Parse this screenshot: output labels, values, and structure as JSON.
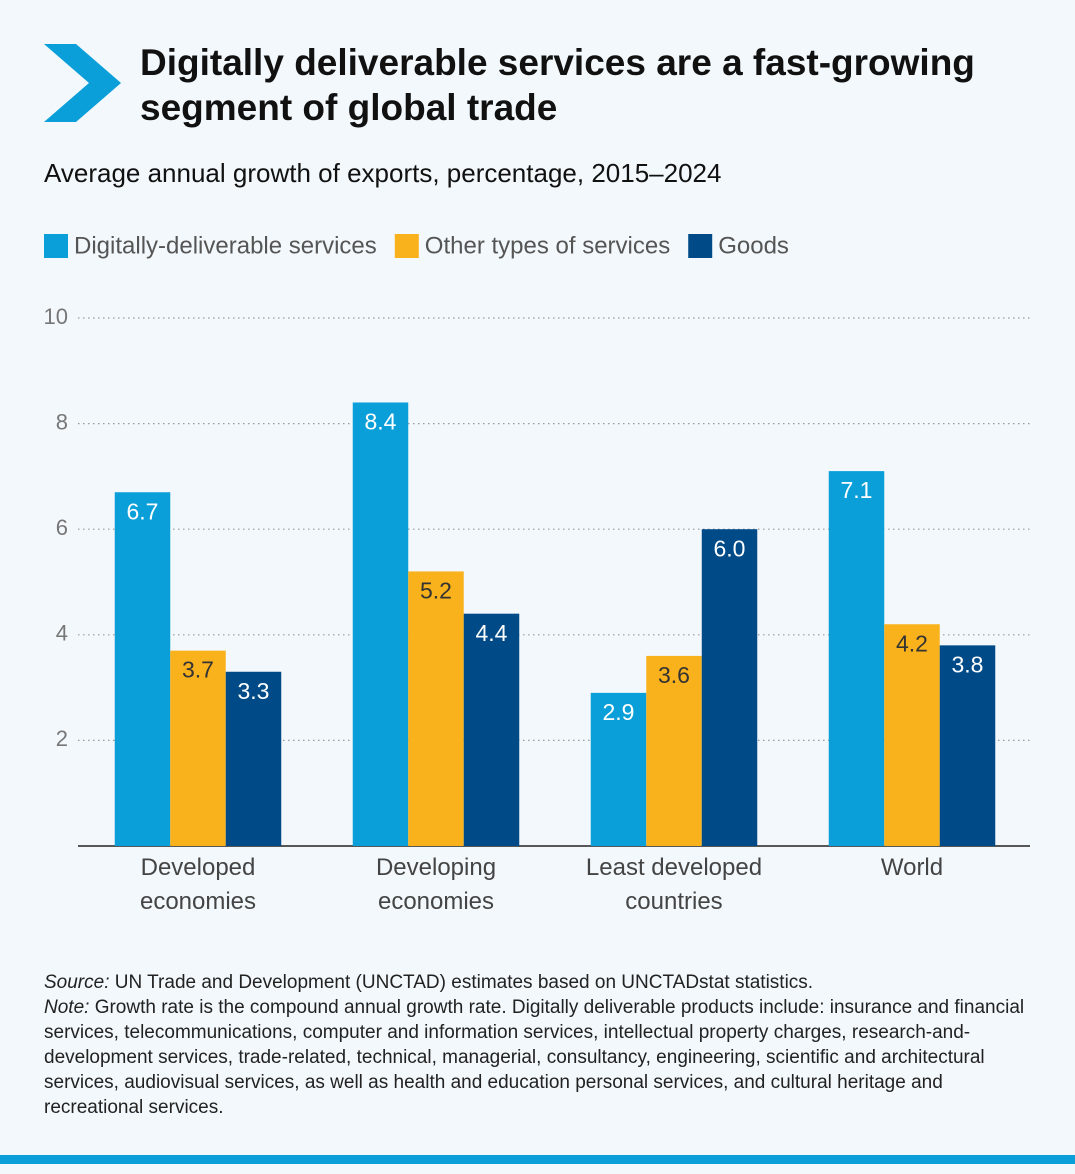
{
  "chart_data": {
    "type": "bar",
    "title": "Digitally deliverable services are a fast-growing segment of global trade",
    "subtitle": "Average annual growth of exports, percentage, 2015–2024",
    "categories": [
      "Developed economies",
      "Developing economies",
      "Least developed countries",
      "World"
    ],
    "series": [
      {
        "name": "Digitally-deliverable services",
        "color": "#0a9fd9",
        "values": [
          6.7,
          8.4,
          2.9,
          7.1
        ],
        "value_labels": [
          "6.7",
          "8.4",
          "2.9",
          "7.1"
        ]
      },
      {
        "name": "Other types of services",
        "color": "#f9b21c",
        "values": [
          3.7,
          5.2,
          3.6,
          4.2
        ],
        "value_labels": [
          "3.7",
          "5.2",
          "3.6",
          "4.2"
        ]
      },
      {
        "name": "Goods",
        "color": "#004a87",
        "values": [
          3.3,
          4.4,
          6.0,
          3.8
        ],
        "value_labels": [
          "3.3",
          "4.4",
          "6.0",
          "3.8"
        ]
      }
    ],
    "ylim": [
      0,
      10
    ],
    "yticks": [
      2,
      4,
      6,
      8,
      10
    ],
    "grid": true,
    "legend": "top-left",
    "source_label": "Source:",
    "source": "UN Trade and Development (UNCTAD) estimates based on UNCTADstat statistics.",
    "note_label": "Note:",
    "note": "Growth rate is the compound annual growth rate. Digitally deliverable products include: insurance and financial services, telecommunications, computer and information services, intellectual property charges, research-and-development services, trade-related, technical, managerial, consultancy, engineering, scientific and architectural services, audiovisual services, as well as health and education personal services, and cultural heritage and recreational services."
  }
}
